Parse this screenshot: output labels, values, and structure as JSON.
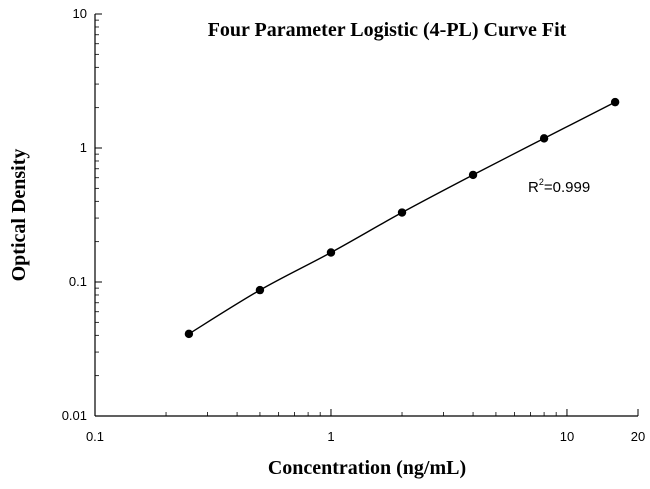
{
  "chart_data": {
    "type": "scatter",
    "title": "Four Parameter Logistic (4-PL) Curve Fit",
    "xlabel": "Concentration (ng/mL)",
    "ylabel": "Optical Density",
    "x_scale": "log",
    "y_scale": "log",
    "xlim": [
      0.1,
      20
    ],
    "ylim": [
      0.01,
      10
    ],
    "x_ticks": [
      {
        "value": 0.1,
        "label": "0.1"
      },
      {
        "value": 1,
        "label": "1"
      },
      {
        "value": 10,
        "label": "10"
      },
      {
        "value": 20,
        "label": "20"
      }
    ],
    "y_ticks": [
      {
        "value": 0.01,
        "label": "0.01"
      },
      {
        "value": 0.1,
        "label": "0.1"
      },
      {
        "value": 1,
        "label": "1"
      },
      {
        "value": 10,
        "label": "10"
      }
    ],
    "grid": false,
    "legend": "none",
    "series": [
      {
        "x": [
          0.25,
          0.5,
          1,
          2,
          4,
          8,
          16
        ],
        "y": [
          0.041,
          0.087,
          0.166,
          0.33,
          0.63,
          1.18,
          2.2
        ],
        "marker": "circle",
        "fit_line": true
      }
    ],
    "annotations": [
      {
        "base": "R",
        "superscript": "2",
        "text": "=0.999"
      }
    ],
    "colors": {
      "line": "#000000",
      "marker": "#000000",
      "axis": "#000000",
      "background": "#ffffff"
    }
  }
}
